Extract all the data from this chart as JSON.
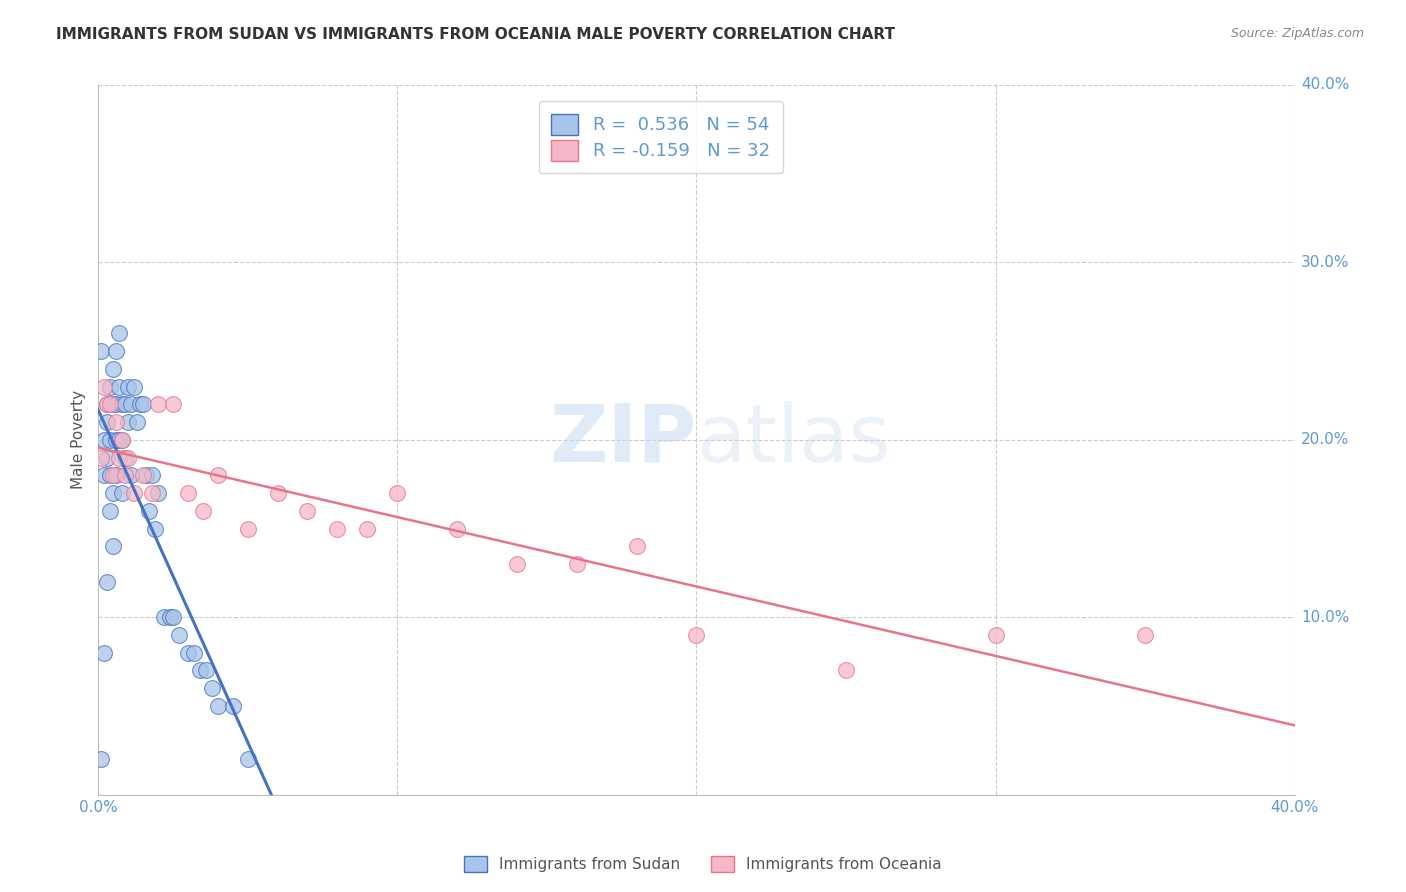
{
  "title": "IMMIGRANTS FROM SUDAN VS IMMIGRANTS FROM OCEANIA MALE POVERTY CORRELATION CHART",
  "source": "Source: ZipAtlas.com",
  "ylabel": "Male Poverty",
  "xlim": [
    0.0,
    0.4
  ],
  "ylim": [
    0.0,
    0.4
  ],
  "sudan_color": "#a8c4e8",
  "oceania_color": "#f4b8c8",
  "sudan_line_color": "#4472c4",
  "oceania_line_color": "#e8748a",
  "legend_sudan_label": "R =  0.536   N = 54",
  "legend_oceania_label": "R = -0.159   N = 32",
  "legend_label_sudan": "Immigrants from Sudan",
  "legend_label_oceania": "Immigrants from Oceania",
  "tick_color": "#5b9bd5",
  "sudan_R": 0.536,
  "sudan_N": 54,
  "oceania_R": -0.159,
  "oceania_N": 32,
  "sudan_x": [
    0.001,
    0.001,
    0.002,
    0.002,
    0.002,
    0.003,
    0.003,
    0.003,
    0.003,
    0.004,
    0.004,
    0.004,
    0.004,
    0.005,
    0.005,
    0.005,
    0.005,
    0.006,
    0.006,
    0.006,
    0.006,
    0.007,
    0.007,
    0.007,
    0.008,
    0.008,
    0.008,
    0.009,
    0.009,
    0.01,
    0.01,
    0.011,
    0.011,
    0.012,
    0.013,
    0.014,
    0.015,
    0.016,
    0.017,
    0.018,
    0.019,
    0.02,
    0.022,
    0.024,
    0.025,
    0.027,
    0.03,
    0.032,
    0.034,
    0.036,
    0.038,
    0.04,
    0.045,
    0.05
  ],
  "sudan_y": [
    0.25,
    0.02,
    0.2,
    0.18,
    0.08,
    0.22,
    0.21,
    0.19,
    0.12,
    0.23,
    0.2,
    0.18,
    0.16,
    0.24,
    0.22,
    0.17,
    0.14,
    0.25,
    0.22,
    0.2,
    0.18,
    0.26,
    0.23,
    0.2,
    0.22,
    0.2,
    0.17,
    0.22,
    0.19,
    0.23,
    0.21,
    0.22,
    0.18,
    0.23,
    0.21,
    0.22,
    0.22,
    0.18,
    0.16,
    0.18,
    0.15,
    0.17,
    0.1,
    0.1,
    0.1,
    0.09,
    0.08,
    0.08,
    0.07,
    0.07,
    0.06,
    0.05,
    0.05,
    0.02
  ],
  "oceania_x": [
    0.001,
    0.002,
    0.003,
    0.004,
    0.005,
    0.006,
    0.007,
    0.008,
    0.009,
    0.01,
    0.012,
    0.015,
    0.018,
    0.02,
    0.025,
    0.03,
    0.035,
    0.04,
    0.05,
    0.06,
    0.07,
    0.08,
    0.09,
    0.1,
    0.12,
    0.14,
    0.16,
    0.18,
    0.2,
    0.25,
    0.3,
    0.35
  ],
  "oceania_y": [
    0.19,
    0.23,
    0.22,
    0.22,
    0.18,
    0.21,
    0.19,
    0.2,
    0.18,
    0.19,
    0.17,
    0.18,
    0.17,
    0.22,
    0.22,
    0.17,
    0.16,
    0.18,
    0.15,
    0.17,
    0.16,
    0.15,
    0.15,
    0.17,
    0.15,
    0.13,
    0.13,
    0.14,
    0.09,
    0.07,
    0.09,
    0.09
  ]
}
